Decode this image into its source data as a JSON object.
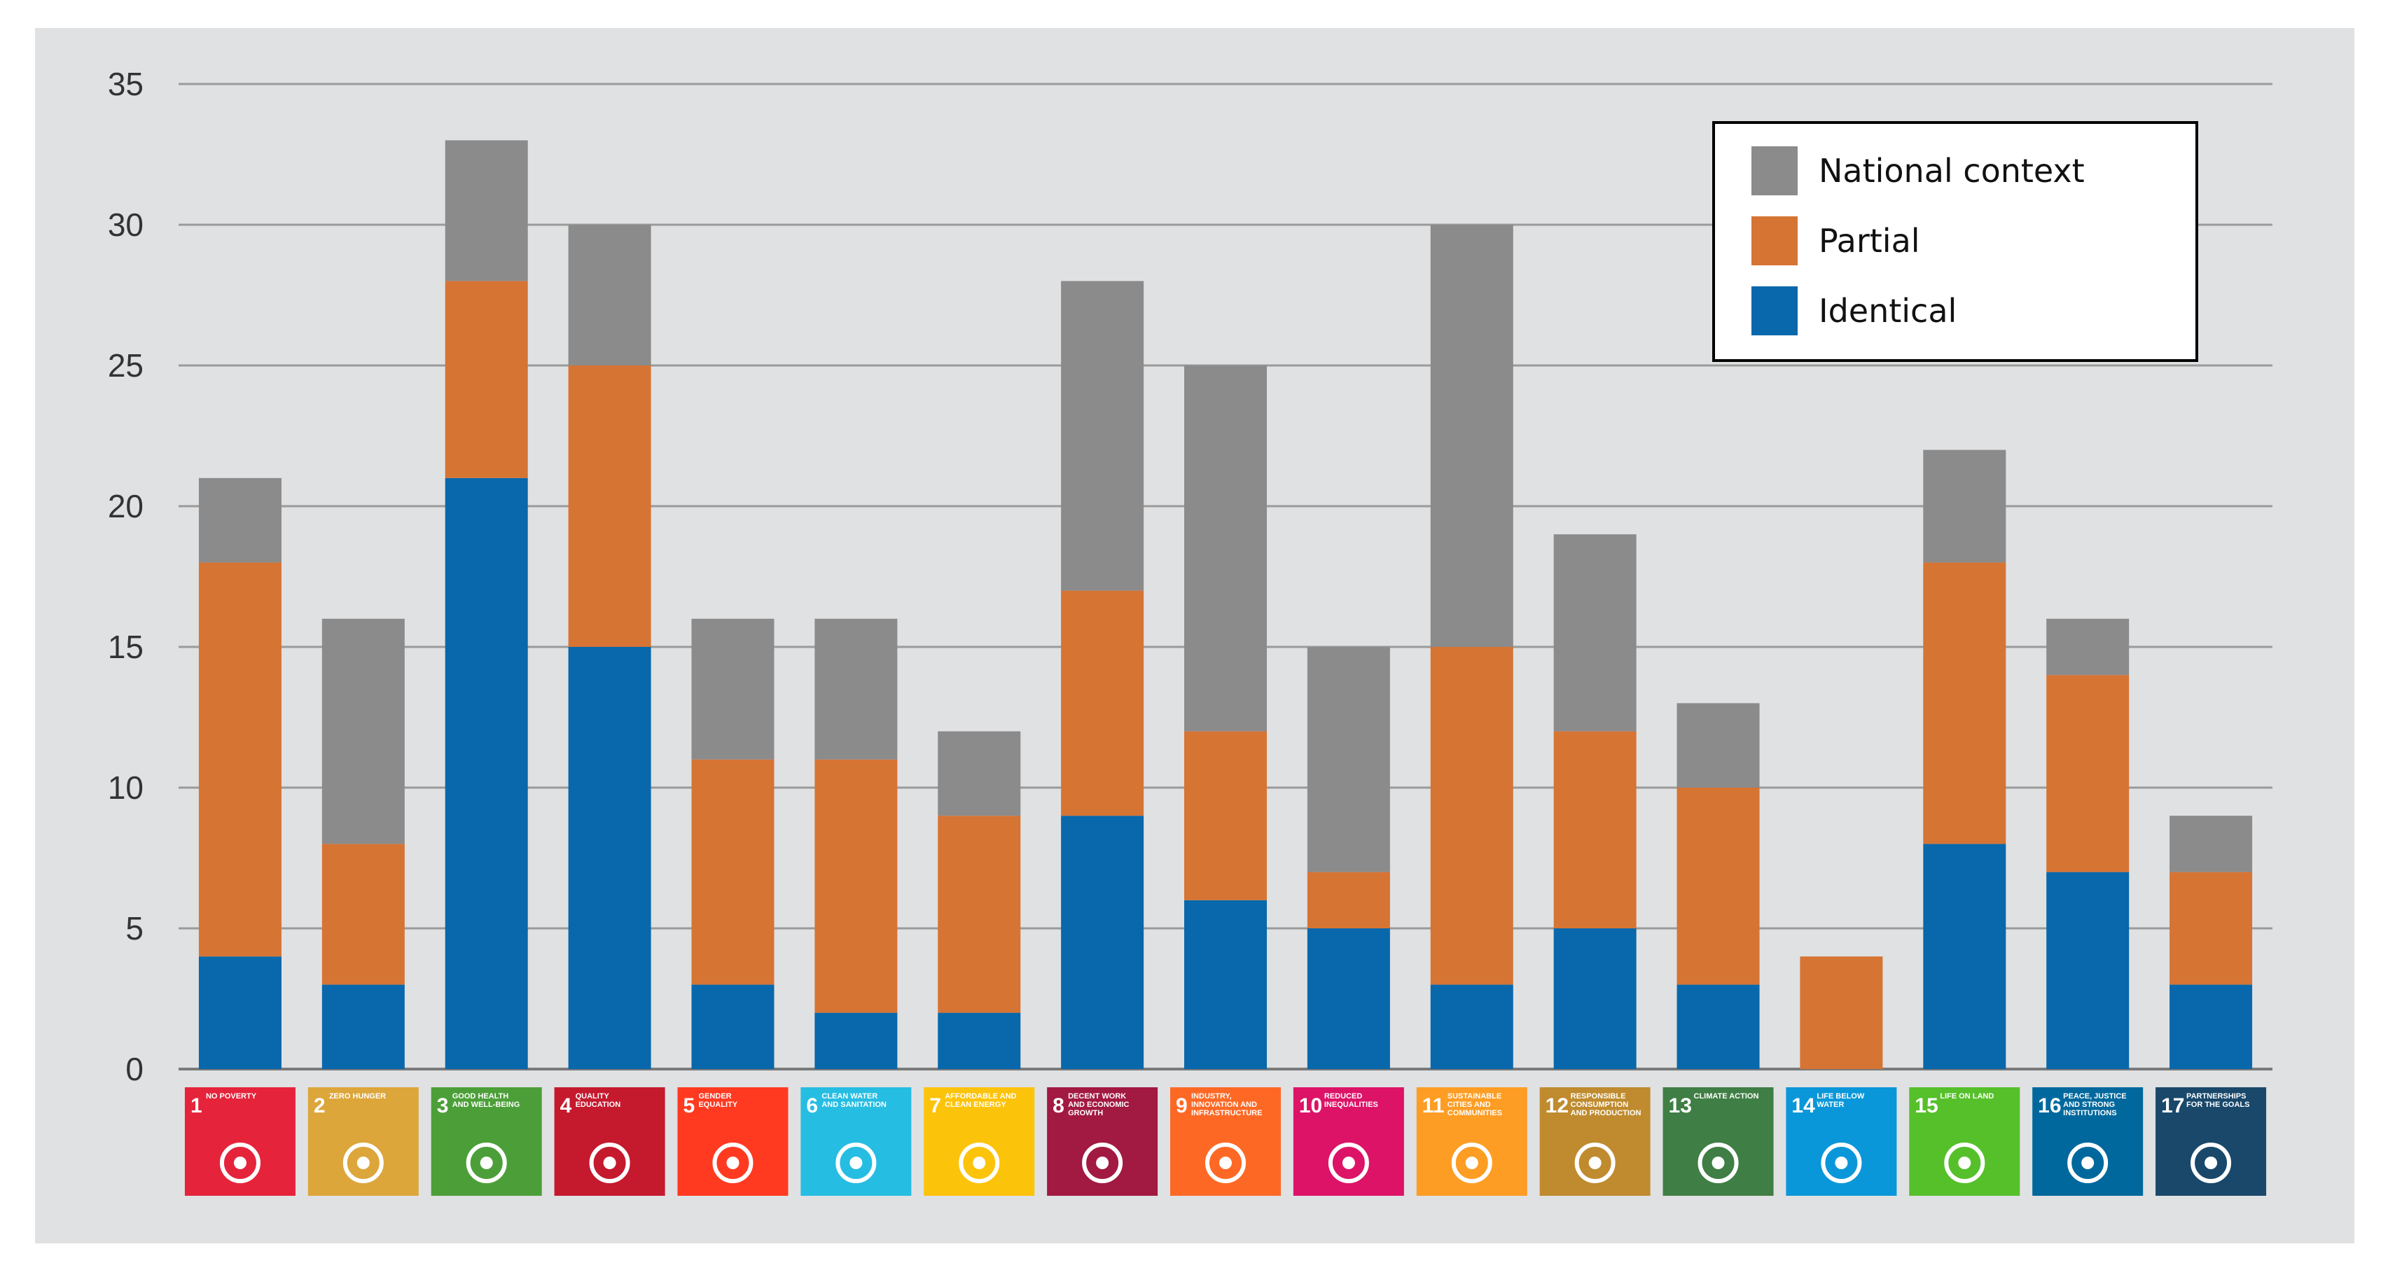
{
  "chart_data": {
    "type": "bar",
    "stacked": true,
    "title": "",
    "xlabel": "",
    "ylabel": "",
    "ylim": [
      0,
      35
    ],
    "yticks": [
      0,
      5,
      10,
      15,
      20,
      25,
      30,
      35
    ],
    "grid": true,
    "legend_position": "top-right",
    "categories": [
      {
        "num": "1",
        "name": "NO POVERTY",
        "color": "#e5243b"
      },
      {
        "num": "2",
        "name": "ZERO HUNGER",
        "color": "#dda63a"
      },
      {
        "num": "3",
        "name": "GOOD HEALTH AND WELL-BEING",
        "color": "#4c9f38"
      },
      {
        "num": "4",
        "name": "QUALITY EDUCATION",
        "color": "#c5192d"
      },
      {
        "num": "5",
        "name": "GENDER EQUALITY",
        "color": "#ff3a21"
      },
      {
        "num": "6",
        "name": "CLEAN WATER AND SANITATION",
        "color": "#26bde2"
      },
      {
        "num": "7",
        "name": "AFFORDABLE AND CLEAN ENERGY",
        "color": "#fcc30b"
      },
      {
        "num": "8",
        "name": "DECENT WORK AND ECONOMIC GROWTH",
        "color": "#a21942"
      },
      {
        "num": "9",
        "name": "INDUSTRY, INNOVATION AND INFRASTRUCTURE",
        "color": "#fd6925"
      },
      {
        "num": "10",
        "name": "REDUCED INEQUALITIES",
        "color": "#dd1367"
      },
      {
        "num": "11",
        "name": "SUSTAINABLE CITIES AND COMMUNITIES",
        "color": "#fd9d24"
      },
      {
        "num": "12",
        "name": "RESPONSIBLE CONSUMPTION AND PRODUCTION",
        "color": "#bf8b2e"
      },
      {
        "num": "13",
        "name": "CLIMATE ACTION",
        "color": "#3f7e44"
      },
      {
        "num": "14",
        "name": "LIFE BELOW WATER",
        "color": "#0a97d9"
      },
      {
        "num": "15",
        "name": "LIFE ON LAND",
        "color": "#56c02b"
      },
      {
        "num": "16",
        "name": "PEACE, JUSTICE AND STRONG INSTITUTIONS",
        "color": "#00689d"
      },
      {
        "num": "17",
        "name": "PARTNERSHIPS FOR THE GOALS",
        "color": "#19486a"
      }
    ],
    "series": [
      {
        "name": "Identical",
        "color": "#0868ab",
        "values": [
          4,
          3,
          21,
          15,
          3,
          2,
          2,
          9,
          6,
          5,
          3,
          5,
          3,
          0,
          8,
          7,
          3
        ]
      },
      {
        "name": "Partial",
        "color": "#d67434",
        "values": [
          14,
          5,
          7,
          10,
          8,
          9,
          7,
          8,
          6,
          2,
          12,
          7,
          7,
          4,
          10,
          7,
          4
        ]
      },
      {
        "name": "National context",
        "color": "#8b8b8b",
        "values": [
          3,
          8,
          5,
          5,
          5,
          5,
          3,
          11,
          13,
          8,
          15,
          7,
          3,
          0,
          4,
          2,
          2
        ]
      }
    ]
  },
  "legend": {
    "items": [
      {
        "label": "National context",
        "color": "#8b8b8b"
      },
      {
        "label": "Partial",
        "color": "#d67434"
      },
      {
        "label": "Identical",
        "color": "#0868ab"
      }
    ]
  }
}
